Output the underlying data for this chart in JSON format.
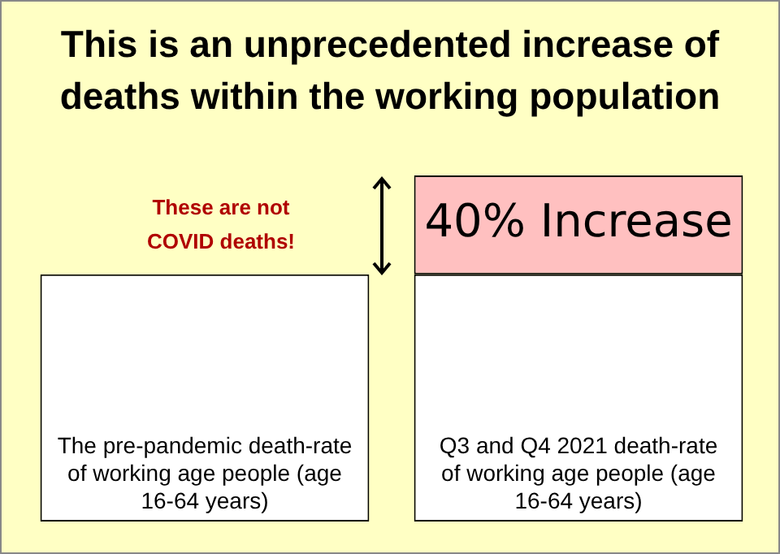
{
  "chart_data": {
    "type": "bar",
    "title": "This is an unprecedented increase of deaths within the working population",
    "categories": [
      "The pre-pandemic death-rate of working age people (age 16-64 years)",
      "Q3 and Q4 2021 death-rate of working age people (age 16-64 years)"
    ],
    "stacked": true,
    "legend": false,
    "ylim": [
      0,
      140
    ],
    "series": [
      {
        "values": [
          100,
          100
        ],
        "color": "#ffffff"
      },
      {
        "values": [
          0,
          40
        ],
        "color": "#ffc0c0",
        "value_labels": [
          null,
          "40% Increase"
        ]
      }
    ],
    "annotations": [
      "These are not COVID deaths!"
    ]
  }
}
